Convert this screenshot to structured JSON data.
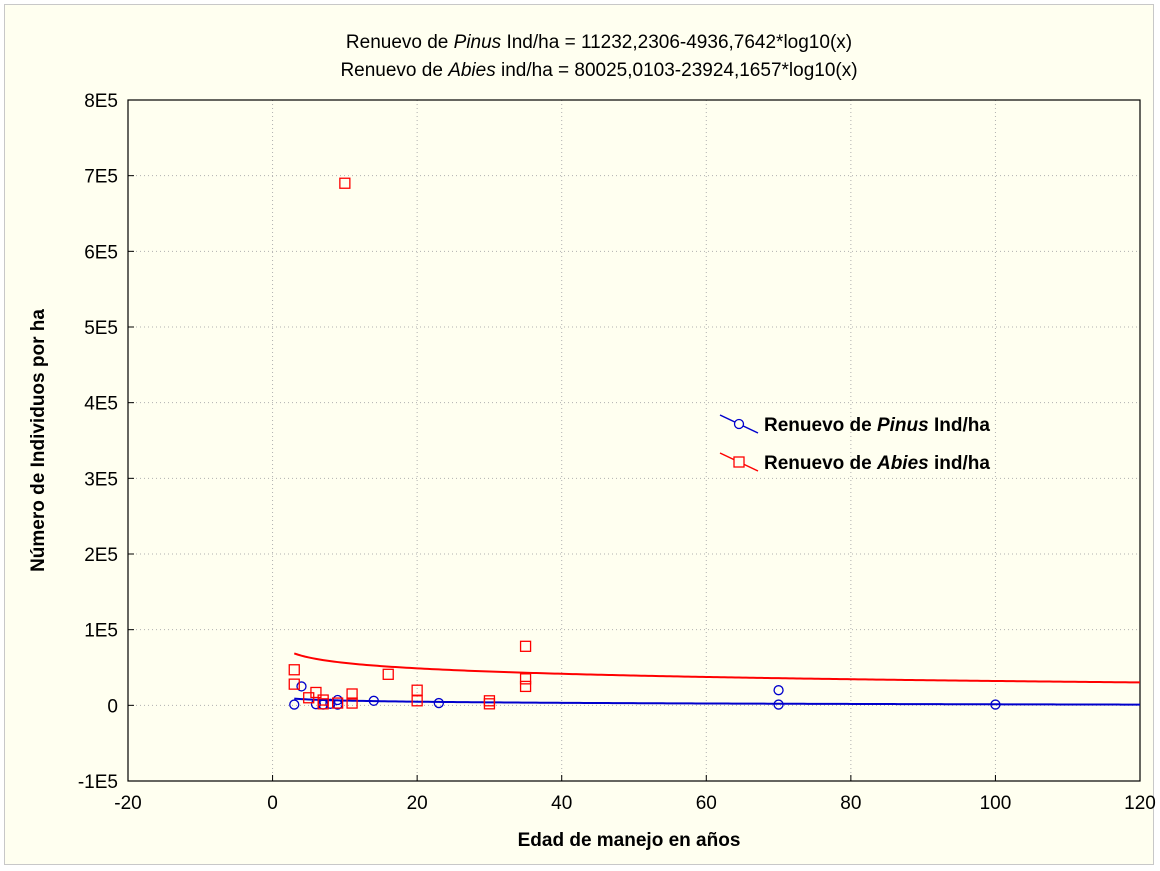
{
  "chart_data": {
    "type": "scatter",
    "title_lines": [
      {
        "prefix": "Renuevo de ",
        "italic": "Pinus",
        "suffix": " Ind/ha = 11232,2306-4936,7642*log10(x)"
      },
      {
        "prefix": "Renuevo de ",
        "italic": "Abies",
        "suffix": " ind/ha = 80025,0103-23924,1657*log10(x)"
      }
    ],
    "xlabel": "Edad de manejo en años",
    "ylabel": "Número de Individuos por ha",
    "xlim": [
      -20,
      120
    ],
    "ylim": [
      -100000,
      800000
    ],
    "x_ticks": [
      -20,
      0,
      20,
      40,
      60,
      80,
      100,
      120
    ],
    "y_ticks": [
      -100000,
      0,
      100000,
      200000,
      300000,
      400000,
      500000,
      600000,
      700000,
      800000
    ],
    "y_tick_labels": [
      "-1E5",
      "0",
      "1E5",
      "2E5",
      "3E5",
      "4E5",
      "5E5",
      "6E5",
      "7E5",
      "8E5"
    ],
    "x_tick_labels": [
      "-20",
      "0",
      "20",
      "40",
      "60",
      "80",
      "100",
      "120"
    ],
    "grid": true,
    "legend_position": "right-middle",
    "series": [
      {
        "name_prefix": "Renuevo de ",
        "name_italic": "Pinus",
        "name_suffix": " Ind/ha",
        "marker": "circle",
        "color": "#0000cc",
        "points": [
          [
            3,
            1000
          ],
          [
            4,
            25000
          ],
          [
            6,
            1500
          ],
          [
            7,
            1000
          ],
          [
            8,
            2000
          ],
          [
            9,
            1000
          ],
          [
            9,
            7000
          ],
          [
            14,
            6000
          ],
          [
            23,
            3000
          ],
          [
            70,
            20000
          ],
          [
            70,
            1000
          ],
          [
            100,
            1000
          ]
        ],
        "fit": {
          "a": 11232.2306,
          "b": -4936.7642,
          "model": "a+b*log10(x)",
          "x_range": [
            3,
            120
          ]
        }
      },
      {
        "name_prefix": "Renuevo de ",
        "name_italic": "Abies",
        "name_suffix": " ind/ha",
        "marker": "square",
        "color": "#ff0000",
        "points": [
          [
            10,
            690000
          ],
          [
            3,
            47000
          ],
          [
            3,
            28000
          ],
          [
            5,
            10000
          ],
          [
            6,
            17000
          ],
          [
            7,
            7000
          ],
          [
            7,
            2000
          ],
          [
            9,
            3000
          ],
          [
            11,
            15000
          ],
          [
            11,
            3000
          ],
          [
            16,
            41000
          ],
          [
            20,
            20000
          ],
          [
            20,
            6000
          ],
          [
            30,
            6000
          ],
          [
            30,
            2000
          ],
          [
            35,
            78000
          ],
          [
            35,
            35000
          ],
          [
            35,
            25000
          ]
        ],
        "fit": {
          "a": 80025.0103,
          "b": -23924.1657,
          "model": "a+b*log10(x)",
          "x_range": [
            3,
            120
          ]
        }
      }
    ]
  }
}
